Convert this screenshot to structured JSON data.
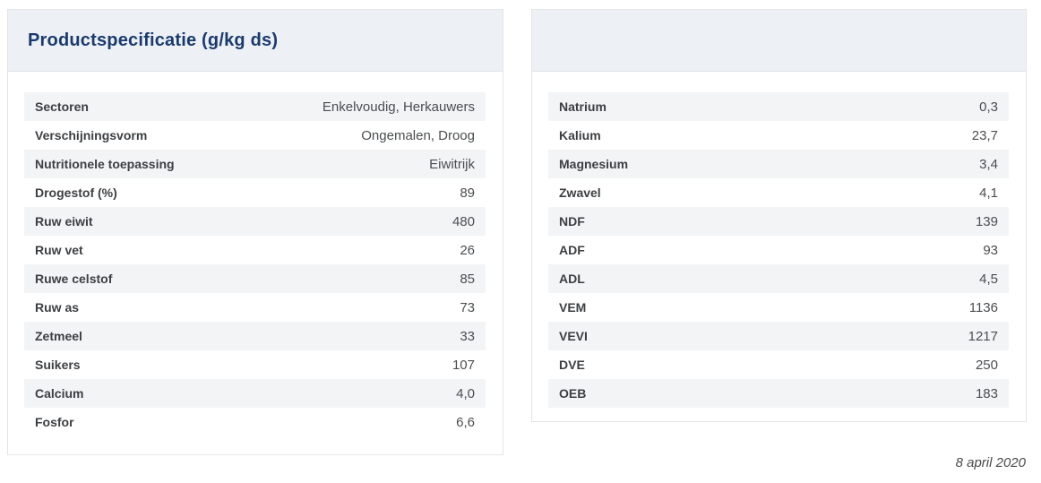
{
  "colors": {
    "title_navy": "#1a3a6e",
    "header_bg": "#edf1f5",
    "stripe_bg": "#f2f4f6",
    "card_border": "#e4e5e6",
    "label_text": "#3d4043",
    "value_text": "#4b4e51"
  },
  "left_panel": {
    "title": "Productspecificatie (g/kg ds)",
    "rows": [
      {
        "label": "Sectoren",
        "value": "Enkelvoudig, Herkauwers"
      },
      {
        "label": "Verschijningsvorm",
        "value": "Ongemalen, Droog"
      },
      {
        "label": "Nutritionele toepassing",
        "value": "Eiwitrijk"
      },
      {
        "label": "Drogestof (%)",
        "value": "89"
      },
      {
        "label": "Ruw eiwit",
        "value": "480"
      },
      {
        "label": "Ruw vet",
        "value": "26"
      },
      {
        "label": "Ruwe celstof",
        "value": "85"
      },
      {
        "label": "Ruw as",
        "value": "73"
      },
      {
        "label": "Zetmeel",
        "value": "33"
      },
      {
        "label": "Suikers",
        "value": "107"
      },
      {
        "label": "Calcium",
        "value": "4,0"
      },
      {
        "label": "Fosfor",
        "value": "6,6"
      }
    ]
  },
  "right_panel": {
    "title": "",
    "rows": [
      {
        "label": "Natrium",
        "value": "0,3"
      },
      {
        "label": "Kalium",
        "value": "23,7"
      },
      {
        "label": "Magnesium",
        "value": "3,4"
      },
      {
        "label": "Zwavel",
        "value": "4,1"
      },
      {
        "label": "NDF",
        "value": "139"
      },
      {
        "label": "ADF",
        "value": "93"
      },
      {
        "label": "ADL",
        "value": "4,5"
      },
      {
        "label": "VEM",
        "value": "1136"
      },
      {
        "label": "VEVI",
        "value": "1217"
      },
      {
        "label": "DVE",
        "value": "250"
      },
      {
        "label": "OEB",
        "value": "183"
      }
    ]
  },
  "footer": {
    "date": "8 april 2020"
  }
}
